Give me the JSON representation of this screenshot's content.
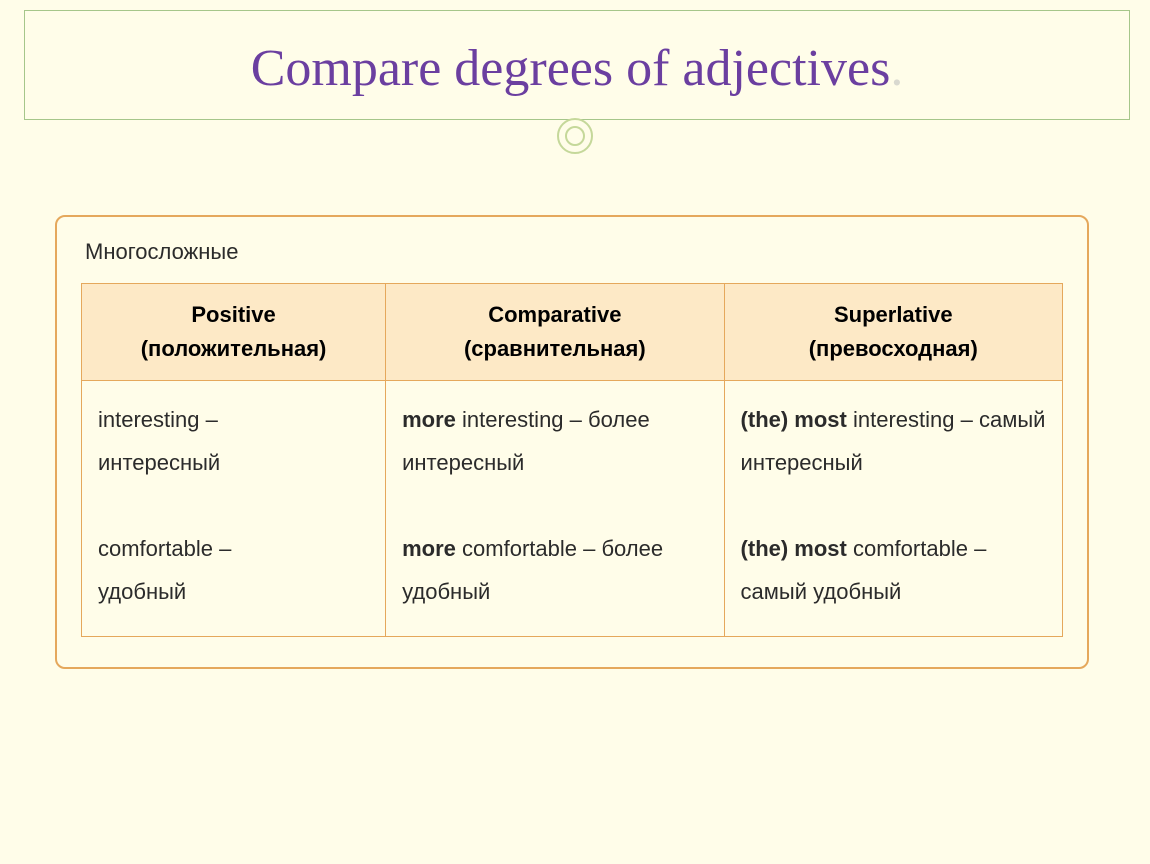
{
  "title": "Compare degrees of adjectives",
  "title_dot": ".",
  "card": {
    "subtitle": "Многосложные",
    "columns": [
      {
        "bold": "Positive",
        "sub": "(положительная)"
      },
      {
        "bold": "Comparative",
        "sub": "(сравнительная)"
      },
      {
        "bold": "Superlative",
        "sub": "(превосходная)"
      }
    ],
    "rows": [
      {
        "positive": {
          "en": "interesting",
          "ru": "интересный"
        },
        "comparative": {
          "bold": "more",
          "en": "interesting",
          "ru": "более интересный"
        },
        "superlative": {
          "bold": "(the) most",
          "en": "interesting",
          "ru": "самый интересный"
        }
      },
      {
        "positive": {
          "en": "comfortable",
          "ru": "удобный"
        },
        "comparative": {
          "bold": "more",
          "en": "comfortable",
          "ru": "более удобный"
        },
        "superlative": {
          "bold": "(the) most",
          "en": "comfortable",
          "ru": "самый удобный"
        }
      }
    ]
  },
  "colors": {
    "background": "#fffde9",
    "title": "#6b3fa0",
    "frame_border": "#a6c68a",
    "circle_border": "#c5d89a",
    "card_border": "#e5a85c",
    "header_bg": "#fde9c6",
    "text": "#2b2b2b"
  },
  "typography": {
    "title_fontsize": 52,
    "title_font": "Georgia, serif",
    "subtitle_fontsize": 22,
    "header_fontsize": 22,
    "cell_fontsize": 22
  }
}
